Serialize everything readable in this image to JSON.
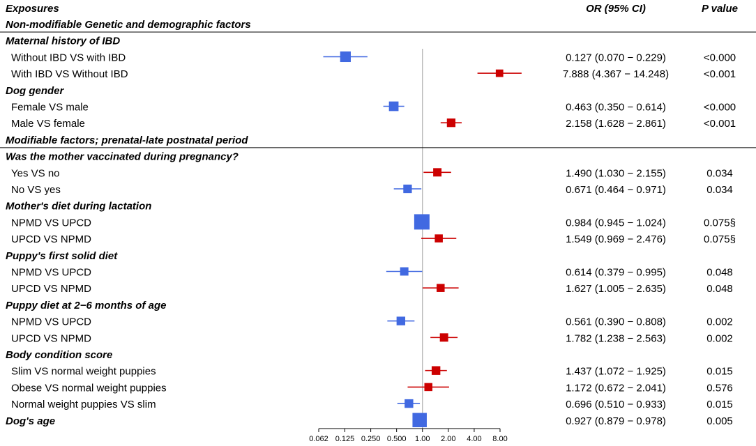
{
  "chart_data": {
    "type": "forest",
    "headers": {
      "exposures": "Exposures",
      "or": "OR (95% CI)",
      "p": "P value"
    },
    "x_scale": "log2",
    "xlim": [
      0.062,
      8.0
    ],
    "reference_line": 1.0,
    "x_ticks": [
      "0.062",
      "0.125",
      "0.250",
      "0.500",
      "1.00",
      "2.00",
      "4.00",
      "8.00"
    ],
    "rows": [
      {
        "type": "section",
        "label": "Non-modifiable Genetic and demographic factors"
      },
      {
        "type": "group",
        "label": "Maternal history of IBD"
      },
      {
        "type": "item",
        "label": "Without IBD VS with IBD",
        "or": 0.127,
        "lo": 0.07,
        "hi": 0.229,
        "or_text": "0.127 (0.070 − 0.229)",
        "p": "<0.000",
        "color": "#4169E1",
        "weight": 0.55
      },
      {
        "type": "item",
        "label": "With IBD VS Without IBD",
        "or": 7.888,
        "lo": 4.367,
        "hi": 14.248,
        "or_text": "7.888 (4.367 − 14.248)",
        "p": "<0.001",
        "color": "#CC0000",
        "weight": 0.25
      },
      {
        "type": "group",
        "label": "Dog gender"
      },
      {
        "type": "item",
        "label": "Female VS male",
        "or": 0.463,
        "lo": 0.35,
        "hi": 0.614,
        "or_text": "0.463 (0.350 − 0.614)",
        "p": "<0.000",
        "color": "#4169E1",
        "weight": 0.45
      },
      {
        "type": "item",
        "label": "Male VS female",
        "or": 2.158,
        "lo": 1.628,
        "hi": 2.861,
        "or_text": "2.158 (1.628 − 2.861)",
        "p": "<0.001",
        "color": "#CC0000",
        "weight": 0.35
      },
      {
        "type": "section",
        "label": "Modifiable factors; prenatal-late postnatal period"
      },
      {
        "type": "group",
        "label": "Was the mother vaccinated during pregnancy?"
      },
      {
        "type": "item",
        "label": "Yes VS no",
        "or": 1.49,
        "lo": 1.03,
        "hi": 2.155,
        "or_text": "1.490 (1.030 − 2.155)",
        "p": "0.034",
        "color": "#CC0000",
        "weight": 0.33
      },
      {
        "type": "item",
        "label": "No VS yes",
        "or": 0.671,
        "lo": 0.464,
        "hi": 0.971,
        "or_text": "0.671 (0.464 − 0.971)",
        "p": "0.034",
        "color": "#4169E1",
        "weight": 0.35
      },
      {
        "type": "group",
        "label": "Mother's diet during lactation"
      },
      {
        "type": "item",
        "label": "NPMD VS UPCD",
        "or": 0.984,
        "lo": 0.945,
        "hi": 1.024,
        "or_text": "0.984 (0.945 − 1.024)",
        "p": "0.075§",
        "color": "#4169E1",
        "weight": 1.0
      },
      {
        "type": "item",
        "label": "UPCD VS NPMD",
        "or": 1.549,
        "lo": 0.969,
        "hi": 2.476,
        "or_text": "1.549 (0.969 − 2.476)",
        "p": "0.075§",
        "color": "#CC0000",
        "weight": 0.3
      },
      {
        "type": "group",
        "label": "Puppy's first solid diet"
      },
      {
        "type": "item",
        "label": "NPMD VS UPCD",
        "or": 0.614,
        "lo": 0.379,
        "hi": 0.995,
        "or_text": "0.614 (0.379 − 0.995)",
        "p": "0.048",
        "color": "#4169E1",
        "weight": 0.33
      },
      {
        "type": "item",
        "label": "UPCD VS NPMD",
        "or": 1.627,
        "lo": 1.005,
        "hi": 2.635,
        "or_text": "1.627 (1.005 − 2.635)",
        "p": "0.048",
        "color": "#CC0000",
        "weight": 0.3
      },
      {
        "type": "group",
        "label": "Puppy diet at 2−6 months of age"
      },
      {
        "type": "item",
        "label": "NPMD VS UPCD",
        "or": 0.561,
        "lo": 0.39,
        "hi": 0.808,
        "or_text": "0.561 (0.390 − 0.808)",
        "p": "0.002",
        "color": "#4169E1",
        "weight": 0.36
      },
      {
        "type": "item",
        "label": "UPCD VS NPMD",
        "or": 1.782,
        "lo": 1.238,
        "hi": 2.563,
        "or_text": "1.782 (1.238 − 2.563)",
        "p": "0.002",
        "color": "#CC0000",
        "weight": 0.33
      },
      {
        "type": "group",
        "label": "Body condition score"
      },
      {
        "type": "item",
        "label": "Slim VS normal weight puppies",
        "or": 1.437,
        "lo": 1.072,
        "hi": 1.925,
        "or_text": "1.437 (1.072 − 1.925)",
        "p": "0.015",
        "color": "#CC0000",
        "weight": 0.36
      },
      {
        "type": "item",
        "label": "Obese VS normal weight puppies",
        "or": 1.172,
        "lo": 0.672,
        "hi": 2.041,
        "or_text": "1.172 (0.672 − 2.041)",
        "p": "0.576",
        "color": "#CC0000",
        "weight": 0.3
      },
      {
        "type": "item",
        "label": "Normal weight puppies VS slim",
        "or": 0.696,
        "lo": 0.51,
        "hi": 0.933,
        "or_text": "0.696 (0.510 − 0.933)",
        "p": "0.015",
        "color": "#4169E1",
        "weight": 0.36
      },
      {
        "type": "item",
        "label": "Dog's age",
        "label_style": "group",
        "or": 0.927,
        "lo": 0.879,
        "hi": 0.978,
        "or_text": "0.927 (0.879 − 0.978)",
        "p": "0.005",
        "color": "#4169E1",
        "weight": 0.9
      }
    ]
  }
}
